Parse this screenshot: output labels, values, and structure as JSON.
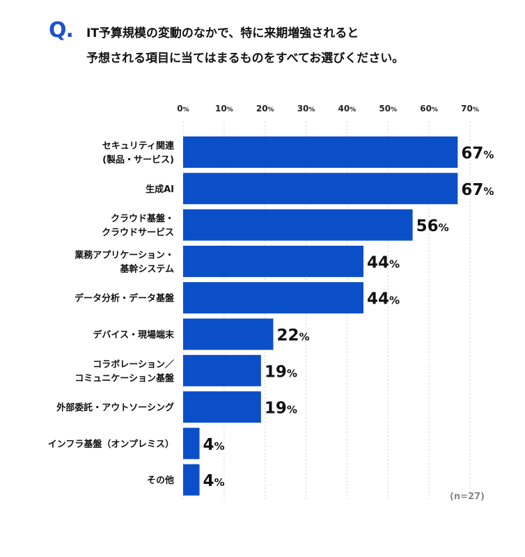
{
  "question": {
    "mark": "Q.",
    "line1": "IT予算規模の変動のなかで、特に来期増強されると",
    "line2": "予想される項目に当てはまるものをすべてお選びください。"
  },
  "note": "(n=27)",
  "colors": {
    "bar": "#0b4fc8",
    "grid": "#cfcfcf",
    "accent": "#1f51c9"
  },
  "chart_data": {
    "type": "bar",
    "orientation": "horizontal",
    "xlim": [
      0,
      70
    ],
    "ticks": [
      0,
      10,
      20,
      30,
      40,
      50,
      60,
      70
    ],
    "tick_unit": "%",
    "categories": [
      [
        "セキュリティ関連",
        "(製品・サービス)"
      ],
      [
        "生成AI"
      ],
      [
        "クラウド基盤・",
        "クラウドサービス"
      ],
      [
        "業務アプリケーション・",
        "基幹システム"
      ],
      [
        "データ分析・データ基盤"
      ],
      [
        "デバイス・現場端末"
      ],
      [
        "コラボレーション／",
        "コミュニケーション基盤"
      ],
      [
        "外部委託・アウトソーシング"
      ],
      [
        "インフラ基盤（オンプレミス）"
      ],
      [
        "その他"
      ]
    ],
    "values": [
      67,
      67,
      56,
      44,
      44,
      22,
      19,
      19,
      4,
      4
    ],
    "value_unit": "%",
    "grid": true
  }
}
